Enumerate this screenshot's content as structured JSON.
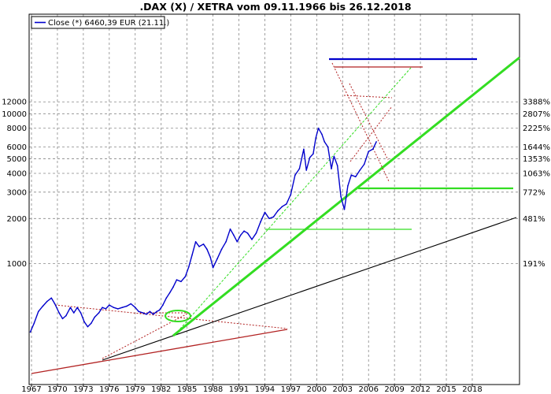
{
  "chart_data": {
    "type": "line",
    "title": ".DAX (X) / XETRA vom 09.11.1966 bis 26.12.2018",
    "y_scale": "log",
    "ylim": [
      580,
      13000
    ],
    "xlim": [
      1966.7,
      2020
    ],
    "y_ticks_left": [
      "12000",
      "10000",
      "8000",
      "6000",
      "5000",
      "4000",
      "3000",
      "2000",
      "1000"
    ],
    "y_ticks_right": [
      "3388%",
      "2807%",
      "2225%",
      "1644%",
      "1353%",
      "1063%",
      "772%",
      "481%",
      "191%"
    ],
    "x_ticks": [
      "1967",
      "1970",
      "1973",
      "1976",
      "1979",
      "1982",
      "1985",
      "1988",
      "1991",
      "1994",
      "1997",
      "2000",
      "2003",
      "2006",
      "2009",
      "2012",
      "2015",
      "2018"
    ],
    "grid": true,
    "legend": {
      "position": "top-left",
      "label": "Close (*) 6460,39 EUR (21.11.)"
    },
    "series": [
      {
        "name": "Close (*) 6460,39 EUR (21.11.)",
        "color": "#0000cc",
        "points": [
          [
            1966.86,
            350
          ],
          [
            1967.3,
            400
          ],
          [
            1967.8,
            480
          ],
          [
            1968.3,
            520
          ],
          [
            1968.8,
            560
          ],
          [
            1969.3,
            590
          ],
          [
            1969.7,
            540
          ],
          [
            1970.2,
            470
          ],
          [
            1970.6,
            430
          ],
          [
            1971.0,
            450
          ],
          [
            1971.5,
            510
          ],
          [
            1971.9,
            470
          ],
          [
            1972.3,
            510
          ],
          [
            1972.7,
            470
          ],
          [
            1973.1,
            410
          ],
          [
            1973.5,
            380
          ],
          [
            1973.9,
            400
          ],
          [
            1974.3,
            440
          ],
          [
            1974.8,
            470
          ],
          [
            1975.2,
            510
          ],
          [
            1975.6,
            500
          ],
          [
            1976.0,
            530
          ],
          [
            1976.5,
            510
          ],
          [
            1977.0,
            500
          ],
          [
            1977.5,
            510
          ],
          [
            1978.0,
            520
          ],
          [
            1978.5,
            540
          ],
          [
            1979.0,
            510
          ],
          [
            1979.4,
            480
          ],
          [
            1979.9,
            470
          ],
          [
            1980.3,
            460
          ],
          [
            1980.7,
            480
          ],
          [
            1981.1,
            460
          ],
          [
            1981.5,
            480
          ],
          [
            1981.8,
            490
          ],
          [
            1982.2,
            530
          ],
          [
            1982.6,
            590
          ],
          [
            1983.0,
            640
          ],
          [
            1983.4,
            700
          ],
          [
            1983.8,
            780
          ],
          [
            1984.3,
            760
          ],
          [
            1984.8,
            820
          ],
          [
            1985.2,
            950
          ],
          [
            1985.6,
            1150
          ],
          [
            1986.0,
            1400
          ],
          [
            1986.4,
            1300
          ],
          [
            1986.9,
            1350
          ],
          [
            1987.3,
            1250
          ],
          [
            1987.7,
            1100
          ],
          [
            1988.0,
            940
          ],
          [
            1988.5,
            1080
          ],
          [
            1989.0,
            1250
          ],
          [
            1989.5,
            1400
          ],
          [
            1990.0,
            1700
          ],
          [
            1990.4,
            1550
          ],
          [
            1990.8,
            1400
          ],
          [
            1991.2,
            1550
          ],
          [
            1991.6,
            1650
          ],
          [
            1992.0,
            1600
          ],
          [
            1992.5,
            1450
          ],
          [
            1993.0,
            1600
          ],
          [
            1993.5,
            1900
          ],
          [
            1994.0,
            2200
          ],
          [
            1994.5,
            2000
          ],
          [
            1995.0,
            2050
          ],
          [
            1995.5,
            2250
          ],
          [
            1996.0,
            2400
          ],
          [
            1996.5,
            2500
          ],
          [
            1997.0,
            2900
          ],
          [
            1997.5,
            3900
          ],
          [
            1998.0,
            4300
          ],
          [
            1998.5,
            5800
          ],
          [
            1998.8,
            4200
          ],
          [
            1999.2,
            5100
          ],
          [
            1999.6,
            5400
          ],
          [
            1999.9,
            6900
          ],
          [
            2000.2,
            8000
          ],
          [
            2000.6,
            7300
          ],
          [
            2000.9,
            6500
          ],
          [
            2001.3,
            6000
          ],
          [
            2001.7,
            4300
          ],
          [
            2002.0,
            5200
          ],
          [
            2002.4,
            4500
          ],
          [
            2002.8,
            2800
          ],
          [
            2003.2,
            2300
          ],
          [
            2003.6,
            3300
          ],
          [
            2004.0,
            3900
          ],
          [
            2004.5,
            3800
          ],
          [
            2005.0,
            4200
          ],
          [
            2005.5,
            4600
          ],
          [
            2006.0,
            5600
          ],
          [
            2006.5,
            5800
          ],
          [
            2006.9,
            6500
          ]
        ]
      }
    ]
  }
}
